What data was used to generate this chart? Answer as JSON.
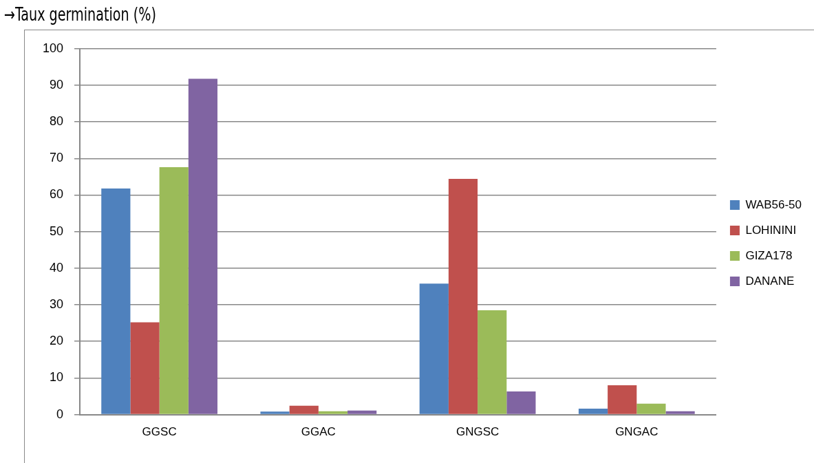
{
  "chart_data": {
    "type": "bar",
    "ylabel": "→Taux germination (%)",
    "categories": [
      "GGSC",
      "GGAC",
      "GNGSC",
      "GNGAC"
    ],
    "series": [
      {
        "name": "WAB56-50",
        "color": "#4f81bd",
        "values": [
          61.8,
          0.8,
          35.8,
          1.6
        ]
      },
      {
        "name": "LOHININI",
        "color": "#c0504d",
        "values": [
          25.2,
          2.4,
          64.4,
          8.0
        ]
      },
      {
        "name": "GIZA178",
        "color": "#9bbb59",
        "values": [
          67.6,
          0.9,
          28.5,
          3.0
        ]
      },
      {
        "name": "DANANE",
        "color": "#8064a2",
        "values": [
          91.8,
          1.1,
          6.3,
          0.9
        ]
      }
    ],
    "ylim": [
      0,
      100
    ],
    "yticks": [
      0,
      10,
      20,
      30,
      40,
      50,
      60,
      70,
      80,
      90,
      100
    ],
    "grid": "y",
    "legend": "right"
  }
}
